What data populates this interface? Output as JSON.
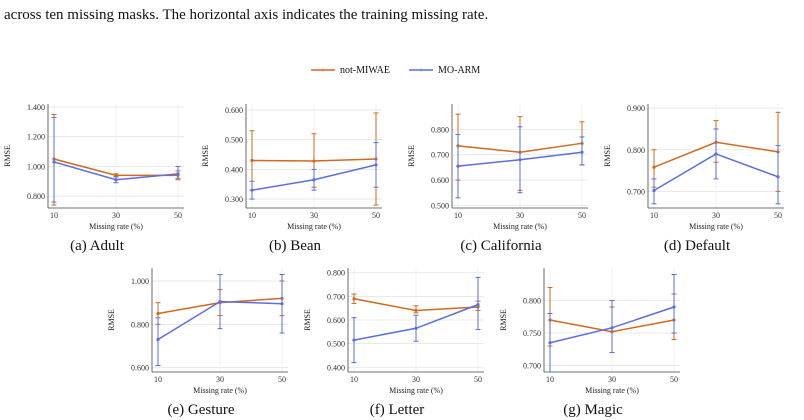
{
  "caption": {
    "line1": "",
    "line2": "across ten missing masks. The horizontal axis indicates the training missing rate."
  },
  "legend": [
    {
      "name": "not-MIWAE",
      "color": "#d2691e"
    },
    {
      "name": "MO-ARM",
      "color": "#5a6ee0"
    }
  ],
  "chart_data": [
    {
      "type": "line",
      "title": "(a) Adult",
      "xlabel": "Missing rate (%)",
      "ylabel": "RMSE",
      "x": [
        10,
        30,
        50
      ],
      "ylim": [
        0.72,
        1.42
      ],
      "yticks": [
        0.8,
        1.0,
        1.2,
        1.4
      ],
      "ytick_labels": [
        "0.800",
        "1.000",
        "1.200",
        "1.400"
      ],
      "series": [
        {
          "name": "not-MIWAE",
          "values": [
            1.05,
            0.94,
            0.94
          ],
          "err_low": [
            0.74,
            0.93,
            0.91
          ],
          "err_high": [
            1.35,
            0.95,
            0.97
          ]
        },
        {
          "name": "MO-ARM",
          "values": [
            1.03,
            0.91,
            0.95
          ],
          "err_low": [
            0.76,
            0.89,
            0.92
          ],
          "err_high": [
            1.33,
            0.93,
            1.0
          ]
        }
      ]
    },
    {
      "type": "line",
      "title": "(b) Bean",
      "xlabel": "Missing rate (%)",
      "ylabel": "RMSE",
      "x": [
        10,
        30,
        50
      ],
      "ylim": [
        0.27,
        0.62
      ],
      "yticks": [
        0.3,
        0.4,
        0.5,
        0.6
      ],
      "ytick_labels": [
        "0.300",
        "0.400",
        "0.500",
        "0.600"
      ],
      "series": [
        {
          "name": "not-MIWAE",
          "values": [
            0.43,
            0.428,
            0.435
          ],
          "err_low": [
            0.33,
            0.34,
            0.28
          ],
          "err_high": [
            0.53,
            0.52,
            0.59
          ]
        },
        {
          "name": "MO-ARM",
          "values": [
            0.33,
            0.365,
            0.415
          ],
          "err_low": [
            0.3,
            0.33,
            0.34
          ],
          "err_high": [
            0.36,
            0.4,
            0.49
          ]
        }
      ]
    },
    {
      "type": "line",
      "title": "(c) California",
      "xlabel": "Missing rate (%)",
      "ylabel": "RMSE",
      "x": [
        10,
        30,
        50
      ],
      "ylim": [
        0.49,
        0.9
      ],
      "yticks": [
        0.5,
        0.6,
        0.7,
        0.8
      ],
      "ytick_labels": [
        "0.500",
        "0.600",
        "0.700",
        "0.800"
      ],
      "series": [
        {
          "name": "not-MIWAE",
          "values": [
            0.735,
            0.71,
            0.745
          ],
          "err_low": [
            0.6,
            0.56,
            0.66
          ],
          "err_high": [
            0.86,
            0.85,
            0.83
          ]
        },
        {
          "name": "MO-ARM",
          "values": [
            0.655,
            0.68,
            0.71
          ],
          "err_low": [
            0.53,
            0.55,
            0.66
          ],
          "err_high": [
            0.78,
            0.81,
            0.77
          ]
        }
      ]
    },
    {
      "type": "line",
      "title": "(d) Default",
      "xlabel": "Missing rate (%)",
      "ylabel": "RMSE",
      "x": [
        10,
        30,
        50
      ],
      "ylim": [
        0.66,
        0.91
      ],
      "yticks": [
        0.7,
        0.8,
        0.9
      ],
      "ytick_labels": [
        "0.700",
        "0.800",
        "0.900"
      ],
      "series": [
        {
          "name": "not-MIWAE",
          "values": [
            0.758,
            0.818,
            0.795
          ],
          "err_low": [
            0.71,
            0.77,
            0.7
          ],
          "err_high": [
            0.8,
            0.87,
            0.89
          ]
        },
        {
          "name": "MO-ARM",
          "values": [
            0.702,
            0.79,
            0.735
          ],
          "err_low": [
            0.67,
            0.73,
            0.67
          ],
          "err_high": [
            0.73,
            0.85,
            0.81
          ]
        }
      ]
    },
    {
      "type": "line",
      "title": "(e) Gesture",
      "xlabel": "Missing rate (%)",
      "ylabel": "RMSE",
      "x": [
        10,
        30,
        50
      ],
      "ylim": [
        0.58,
        1.06
      ],
      "yticks": [
        0.6,
        0.8,
        1.0
      ],
      "ytick_labels": [
        "0.600",
        "0.800",
        "1.000"
      ],
      "series": [
        {
          "name": "not-MIWAE",
          "values": [
            0.85,
            0.9,
            0.92
          ],
          "err_low": [
            0.8,
            0.84,
            0.84
          ],
          "err_high": [
            0.9,
            0.96,
            1.0
          ]
        },
        {
          "name": "MO-ARM",
          "values": [
            0.73,
            0.905,
            0.895
          ],
          "err_low": [
            0.61,
            0.78,
            0.76
          ],
          "err_high": [
            0.83,
            1.03,
            1.03
          ]
        }
      ]
    },
    {
      "type": "line",
      "title": "(f) Letter",
      "xlabel": "Missing rate (%)",
      "ylabel": "RMSE",
      "x": [
        10,
        30,
        50
      ],
      "ylim": [
        0.38,
        0.82
      ],
      "yticks": [
        0.4,
        0.5,
        0.6,
        0.7,
        0.8
      ],
      "ytick_labels": [
        "0.400",
        "0.500",
        "0.600",
        "0.700",
        "0.800"
      ],
      "series": [
        {
          "name": "not-MIWAE",
          "values": [
            0.69,
            0.64,
            0.655
          ],
          "err_low": [
            0.67,
            0.63,
            0.64
          ],
          "err_high": [
            0.71,
            0.66,
            0.68
          ]
        },
        {
          "name": "MO-ARM",
          "values": [
            0.515,
            0.565,
            0.665
          ],
          "err_low": [
            0.42,
            0.51,
            0.56
          ],
          "err_high": [
            0.61,
            0.62,
            0.78
          ]
        }
      ]
    },
    {
      "type": "line",
      "title": "(g) Magic",
      "xlabel": "Missing rate (%)",
      "ylabel": "RMSE",
      "x": [
        10,
        30,
        50
      ],
      "ylim": [
        0.69,
        0.85
      ],
      "yticks": [
        0.7,
        0.75,
        0.8
      ],
      "ytick_labels": [
        "0.700",
        "0.750",
        "0.800"
      ],
      "series": [
        {
          "name": "not-MIWAE",
          "values": [
            0.77,
            0.752,
            0.77
          ],
          "err_low": [
            0.73,
            0.72,
            0.74
          ],
          "err_high": [
            0.82,
            0.79,
            0.81
          ]
        },
        {
          "name": "MO-ARM",
          "values": [
            0.735,
            0.758,
            0.79
          ],
          "err_low": [
            0.69,
            0.72,
            0.75
          ],
          "err_high": [
            0.78,
            0.8,
            0.84
          ]
        }
      ]
    }
  ]
}
